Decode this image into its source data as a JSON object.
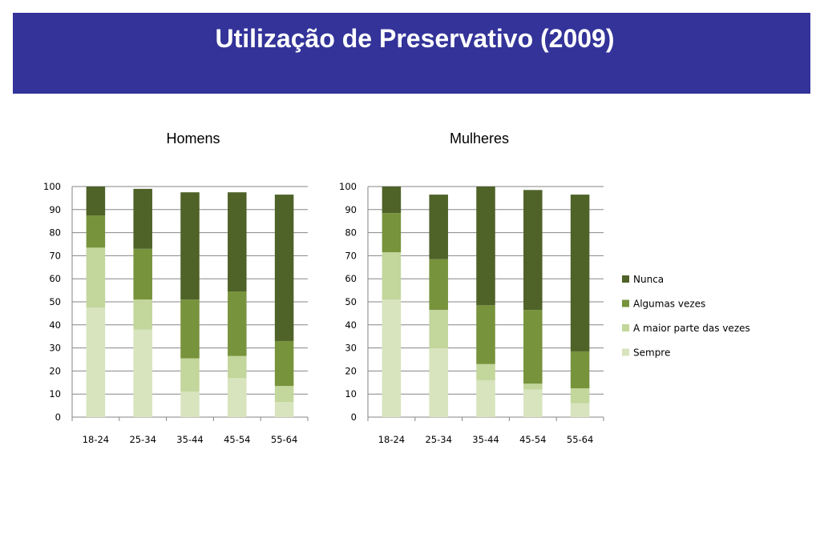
{
  "slide": {
    "title": "Utilização de Preservativo (2009)"
  },
  "colors": {
    "banner": "#333399",
    "Sempre": "#d7e4bd",
    "A maior parte das vezes": "#c3d69b",
    "Algumas vezes": "#77933c",
    "Nunca": "#4f6228",
    "gridline": "#868686"
  },
  "legend": {
    "position": "right",
    "items": [
      "Nunca",
      "Algumas vezes",
      "A maior parte das vezes",
      "Sempre"
    ]
  },
  "chart_data": [
    {
      "type": "bar",
      "stacked": true,
      "title": "Homens",
      "categories": [
        "18-24",
        "25-34",
        "35-44",
        "45-54",
        "55-64"
      ],
      "ylim": [
        0,
        100
      ],
      "yticks": [
        0,
        10,
        20,
        30,
        40,
        50,
        60,
        70,
        80,
        90,
        100
      ],
      "grid": true,
      "series": [
        {
          "name": "Sempre",
          "values": [
            47.5,
            38,
            11,
            17,
            6.5
          ]
        },
        {
          "name": "A maior parte das vezes",
          "values": [
            26,
            13,
            14.5,
            9.5,
            7
          ]
        },
        {
          "name": "Algumas vezes",
          "values": [
            14,
            22,
            25.5,
            28,
            19.5
          ]
        },
        {
          "name": "Nunca",
          "values": [
            12.5,
            26,
            46.5,
            43,
            63.5
          ]
        }
      ]
    },
    {
      "type": "bar",
      "stacked": true,
      "title": "Mulheres",
      "categories": [
        "18-24",
        "25-34",
        "35-44",
        "45-54",
        "55-64"
      ],
      "ylim": [
        0,
        100
      ],
      "yticks": [
        0,
        10,
        20,
        30,
        40,
        50,
        60,
        70,
        80,
        90,
        100
      ],
      "grid": true,
      "series": [
        {
          "name": "Sempre",
          "values": [
            51,
            30,
            16,
            12,
            6
          ]
        },
        {
          "name": "A maior parte das vezes",
          "values": [
            20.5,
            16.5,
            7,
            2.5,
            6.5
          ]
        },
        {
          "name": "Algumas vezes",
          "values": [
            17,
            22,
            25.5,
            32,
            16
          ]
        },
        {
          "name": "Nunca",
          "values": [
            11.5,
            28,
            51.5,
            52,
            68
          ]
        }
      ]
    }
  ]
}
